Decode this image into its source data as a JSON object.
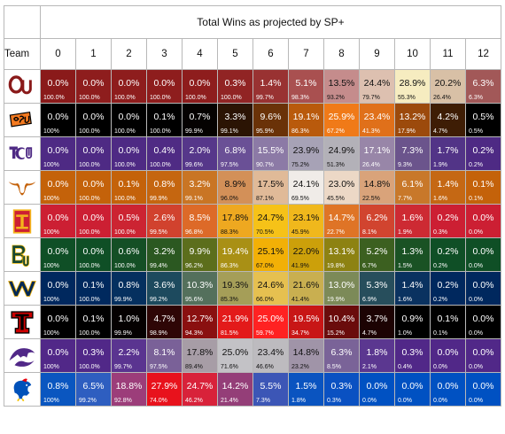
{
  "chart_data": {
    "type": "heatmap",
    "title": "Total Wins as projected by SP+",
    "row_header": "Team",
    "columns": [
      "0",
      "1",
      "2",
      "3",
      "4",
      "5",
      "6",
      "7",
      "8",
      "9",
      "10",
      "11",
      "12"
    ],
    "rows": [
      {
        "team": "Oklahoma",
        "logo": "ou-logo",
        "win_pct": [
          "0.0%",
          "0.0%",
          "0.0%",
          "0.0%",
          "0.0%",
          "0.3%",
          "1.4%",
          "5.1%",
          "13.5%",
          "24.4%",
          "28.9%",
          "20.2%",
          "6.3%"
        ],
        "at_least_pct": [
          "100.0%",
          "100.0%",
          "100.0%",
          "100.0%",
          "100.0%",
          "100.0%",
          "99.7%",
          "98.3%",
          "93.2%",
          "79.7%",
          "55.3%",
          "26.4%",
          "6.3%"
        ]
      },
      {
        "team": "Oklahoma State",
        "logo": "osu-logo",
        "win_pct": [
          "0.0%",
          "0.0%",
          "0.0%",
          "0.1%",
          "0.7%",
          "3.3%",
          "9.6%",
          "19.1%",
          "25.9%",
          "23.4%",
          "13.2%",
          "4.2%",
          "0.5%"
        ],
        "at_least_pct": [
          "100%",
          "100.0%",
          "100.0%",
          "100.0%",
          "99.9%",
          "99.1%",
          "95.9%",
          "86.3%",
          "67.2%",
          "41.3%",
          "17.9%",
          "4.7%",
          "0.5%"
        ]
      },
      {
        "team": "TCU",
        "logo": "tcu-logo",
        "win_pct": [
          "0.0%",
          "0.0%",
          "0.0%",
          "0.4%",
          "2.0%",
          "6.8%",
          "15.5%",
          "23.9%",
          "24.9%",
          "17.1%",
          "7.3%",
          "1.7%",
          "0.2%"
        ],
        "at_least_pct": [
          "100%",
          "100.0%",
          "100.0%",
          "100.0%",
          "99.6%",
          "97.5%",
          "90.7%",
          "75.2%",
          "51.3%",
          "26.4%",
          "9.3%",
          "1.9%",
          "0.2%"
        ]
      },
      {
        "team": "Texas",
        "logo": "texas-logo",
        "win_pct": [
          "0.0%",
          "0.0%",
          "0.1%",
          "0.8%",
          "3.2%",
          "8.9%",
          "17.5%",
          "24.1%",
          "23.0%",
          "14.8%",
          "6.1%",
          "1.4%",
          "0.1%"
        ],
        "at_least_pct": [
          "100%",
          "100.0%",
          "100.0%",
          "99.9%",
          "99.1%",
          "96.0%",
          "87.1%",
          "69.5%",
          "45.5%",
          "22.5%",
          "7.7%",
          "1.6%",
          "0.1%"
        ]
      },
      {
        "team": "Iowa State",
        "logo": "iowa-state-logo",
        "win_pct": [
          "0.0%",
          "0.0%",
          "0.5%",
          "2.6%",
          "8.5%",
          "17.8%",
          "24.7%",
          "23.1%",
          "14.7%",
          "6.2%",
          "1.6%",
          "0.2%",
          "0.0%"
        ],
        "at_least_pct": [
          "100%",
          "100.0%",
          "100.0%",
          "99.5%",
          "96.8%",
          "88.3%",
          "70.5%",
          "45.9%",
          "22.7%",
          "8.1%",
          "1.9%",
          "0.3%",
          "0.0%"
        ]
      },
      {
        "team": "Baylor",
        "logo": "baylor-logo",
        "win_pct": [
          "0.0%",
          "0.0%",
          "0.6%",
          "3.2%",
          "9.9%",
          "19.4%",
          "25.1%",
          "22.0%",
          "13.1%",
          "5.2%",
          "1.3%",
          "0.2%",
          "0.0%"
        ],
        "at_least_pct": [
          "100%",
          "100.0%",
          "100.0%",
          "99.4%",
          "96.2%",
          "86.3%",
          "67.0%",
          "41.9%",
          "19.8%",
          "6.7%",
          "1.5%",
          "0.2%",
          "0.0%"
        ]
      },
      {
        "team": "West Virginia",
        "logo": "wvu-logo",
        "win_pct": [
          "0.0%",
          "0.1%",
          "0.8%",
          "3.6%",
          "10.3%",
          "19.3%",
          "24.6%",
          "21.6%",
          "13.0%",
          "5.3%",
          "1.4%",
          "0.2%",
          "0.0%"
        ],
        "at_least_pct": [
          "100%",
          "100.0%",
          "99.9%",
          "99.2%",
          "95.6%",
          "85.3%",
          "66.0%",
          "41.4%",
          "19.9%",
          "6.9%",
          "1.6%",
          "0.2%",
          "0.0%"
        ]
      },
      {
        "team": "Texas Tech",
        "logo": "texas-tech-logo",
        "win_pct": [
          "0.0%",
          "0.1%",
          "1.0%",
          "4.7%",
          "12.7%",
          "21.9%",
          "25.0%",
          "19.5%",
          "10.4%",
          "3.7%",
          "0.9%",
          "0.1%",
          "0.0%"
        ],
        "at_least_pct": [
          "100%",
          "100.0%",
          "99.9%",
          "98.9%",
          "94.3%",
          "81.5%",
          "59.7%",
          "34.7%",
          "15.2%",
          "4.7%",
          "1.0%",
          "0.1%",
          "0.0%"
        ]
      },
      {
        "team": "Kansas State",
        "logo": "k-state-logo",
        "win_pct": [
          "0.0%",
          "0.3%",
          "2.2%",
          "8.1%",
          "17.8%",
          "25.0%",
          "23.4%",
          "14.8%",
          "6.3%",
          "1.8%",
          "0.3%",
          "0.0%",
          "0.0%"
        ],
        "at_least_pct": [
          "100%",
          "100.0%",
          "99.7%",
          "97.5%",
          "89.4%",
          "71.6%",
          "46.6%",
          "23.2%",
          "8.5%",
          "2.1%",
          "0.4%",
          "0.0%",
          "0.0%"
        ]
      },
      {
        "team": "Kansas",
        "logo": "kansas-logo",
        "win_pct": [
          "0.8%",
          "6.5%",
          "18.8%",
          "27.9%",
          "24.7%",
          "14.2%",
          "5.5%",
          "1.5%",
          "0.3%",
          "0.0%",
          "0.0%",
          "0.0%",
          "0.0%"
        ],
        "at_least_pct": [
          "100%",
          "99.2%",
          "92.8%",
          "74.0%",
          "46.2%",
          "21.4%",
          "7.3%",
          "1.8%",
          "0.3%",
          "0.0%",
          "0.0%",
          "0.0%",
          "0.0%"
        ]
      }
    ],
    "colors": {
      "Oklahoma": [
        "#8a1a1a",
        "#8e1d1d",
        "#8e1d1d",
        "#8e1d1d",
        "#8e1d1d",
        "#912424",
        "#993232",
        "#a95050",
        "#c58c8c",
        "#ddc0b0",
        "#f6ecc0",
        "#d8c0a6",
        "#a25858"
      ],
      "Oklahoma State": [
        "#000000",
        "#000000",
        "#000000",
        "#000000",
        "#050201",
        "#2b1404",
        "#6a3208",
        "#b95a0c",
        "#f07a18",
        "#e0701a",
        "#9c4a0c",
        "#3e1d05",
        "#000000"
      ],
      "TCU": [
        "#4e2a84",
        "#4e2a84",
        "#4e2a84",
        "#4f2b84",
        "#56378a",
        "#6a5096",
        "#8c7aa6",
        "#a7a2b6",
        "#b3b1b8",
        "#9886a8",
        "#6b548c",
        "#523487",
        "#4e2a84"
      ],
      "Texas": [
        "#c4620a",
        "#c4620a",
        "#c4620a",
        "#c56610",
        "#c97524",
        "#d39058",
        "#e0ba98",
        "#f0ece8",
        "#ecd8c6",
        "#d9a37a",
        "#c8782a",
        "#c56814",
        "#c4620a"
      ],
      "Iowa State": [
        "#cc1f33",
        "#cc1f33",
        "#cc2432",
        "#d1422e",
        "#dd6a28",
        "#eea820",
        "#f6c218",
        "#f0b81c",
        "#df7426",
        "#d1442f",
        "#cd2a33",
        "#cc1f33",
        "#cc1f33"
      ],
      "Baylor": [
        "#0f4f26",
        "#0f4f26",
        "#144f25",
        "#2b5821",
        "#5c6e1c",
        "#a99015",
        "#f2b006",
        "#cca00a",
        "#8d8212",
        "#3c6020",
        "#1a5224",
        "#0f4f26",
        "#0f4f26"
      ],
      "West Virginia": [
        "#00285e",
        "#00295e",
        "#05305f",
        "#1d4a5e",
        "#54705c",
        "#a59e58",
        "#e6c050",
        "#c9af50",
        "#7c8a58",
        "#274e5c",
        "#0a3260",
        "#00285e",
        "#00285e"
      ],
      "Texas Tech": [
        "#000000",
        "#000000",
        "#050101",
        "#2e0606",
        "#8a1010",
        "#e31a1a",
        "#ff2222",
        "#c81616",
        "#6a0c0c",
        "#1c0303",
        "#000000",
        "#000000",
        "#000000"
      ],
      "Kansas State": [
        "#512888",
        "#512888",
        "#5a3490",
        "#7a6198",
        "#a79da6",
        "#c3c2c6",
        "#bdbbbf",
        "#a094a8",
        "#7a6398",
        "#5b3790",
        "#512888",
        "#512888",
        "#512888"
      ],
      "Kansas": [
        "#0a56c0",
        "#2e5ec0",
        "#9c3d7a",
        "#e8121c",
        "#d8223a",
        "#943e78",
        "#3c56b6",
        "#0a54c0",
        "#0a51c2",
        "#0051c2",
        "#0051c2",
        "#0051c2",
        "#0051c2"
      ]
    }
  }
}
